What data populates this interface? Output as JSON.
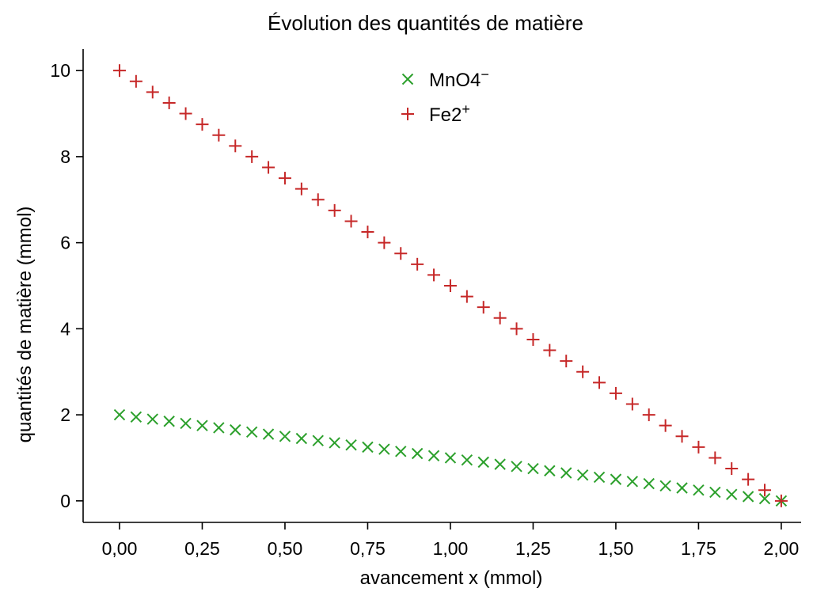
{
  "chart_data": {
    "type": "scatter",
    "title": "Évolution des quantités de matière",
    "xlabel": "avancement x (mmol)",
    "ylabel": "quantités de matière (mmol)",
    "xlim": [
      -0.11,
      2.06
    ],
    "ylim": [
      -0.5,
      10.5
    ],
    "x_ticks": [
      0,
      0.25,
      0.5,
      0.75,
      1.0,
      1.25,
      1.5,
      1.75,
      2.0
    ],
    "x_tick_labels": [
      "0,00",
      "0,25",
      "0,50",
      "0,75",
      "1,00",
      "1,25",
      "1,50",
      "1,75",
      "2,00"
    ],
    "y_ticks": [
      0,
      2,
      4,
      6,
      8,
      10
    ],
    "y_tick_labels": [
      "0",
      "2",
      "4",
      "6",
      "8",
      "10"
    ],
    "grid": false,
    "legend_position": "top-center",
    "x": [
      0,
      0.05,
      0.1,
      0.15,
      0.2,
      0.25,
      0.3,
      0.35,
      0.4,
      0.45,
      0.5,
      0.55,
      0.6,
      0.65,
      0.7,
      0.75,
      0.8,
      0.85,
      0.9,
      0.95,
      1.0,
      1.05,
      1.1,
      1.15,
      1.2,
      1.25,
      1.3,
      1.35,
      1.4,
      1.45,
      1.5,
      1.55,
      1.6,
      1.65,
      1.7,
      1.75,
      1.8,
      1.85,
      1.9,
      1.95,
      2.0
    ],
    "series": [
      {
        "name": "MnO4⁻",
        "label_base": "MnO4",
        "label_sup": "−",
        "marker": "x",
        "color": "#2ca02c",
        "values": [
          2.0,
          1.95,
          1.9,
          1.85,
          1.8,
          1.75,
          1.7,
          1.65,
          1.6,
          1.55,
          1.5,
          1.45,
          1.4,
          1.35,
          1.3,
          1.25,
          1.2,
          1.15,
          1.1,
          1.05,
          1.0,
          0.95,
          0.9,
          0.85,
          0.8,
          0.75,
          0.7,
          0.65,
          0.6,
          0.55,
          0.5,
          0.45,
          0.4,
          0.35,
          0.3,
          0.25,
          0.2,
          0.15,
          0.1,
          0.05,
          0.0
        ]
      },
      {
        "name": "Fe2⁺",
        "label_base": "Fe2",
        "label_sup": "+",
        "marker": "+",
        "color": "#c62828",
        "values": [
          10.0,
          9.75,
          9.5,
          9.25,
          9.0,
          8.75,
          8.5,
          8.25,
          8.0,
          7.75,
          7.5,
          7.25,
          7.0,
          6.75,
          6.5,
          6.25,
          6.0,
          5.75,
          5.5,
          5.25,
          5.0,
          4.75,
          4.5,
          4.25,
          4.0,
          3.75,
          3.5,
          3.25,
          3.0,
          2.75,
          2.5,
          2.25,
          2.0,
          1.75,
          1.5,
          1.25,
          1.0,
          0.75,
          0.5,
          0.25,
          0.0
        ]
      }
    ]
  }
}
